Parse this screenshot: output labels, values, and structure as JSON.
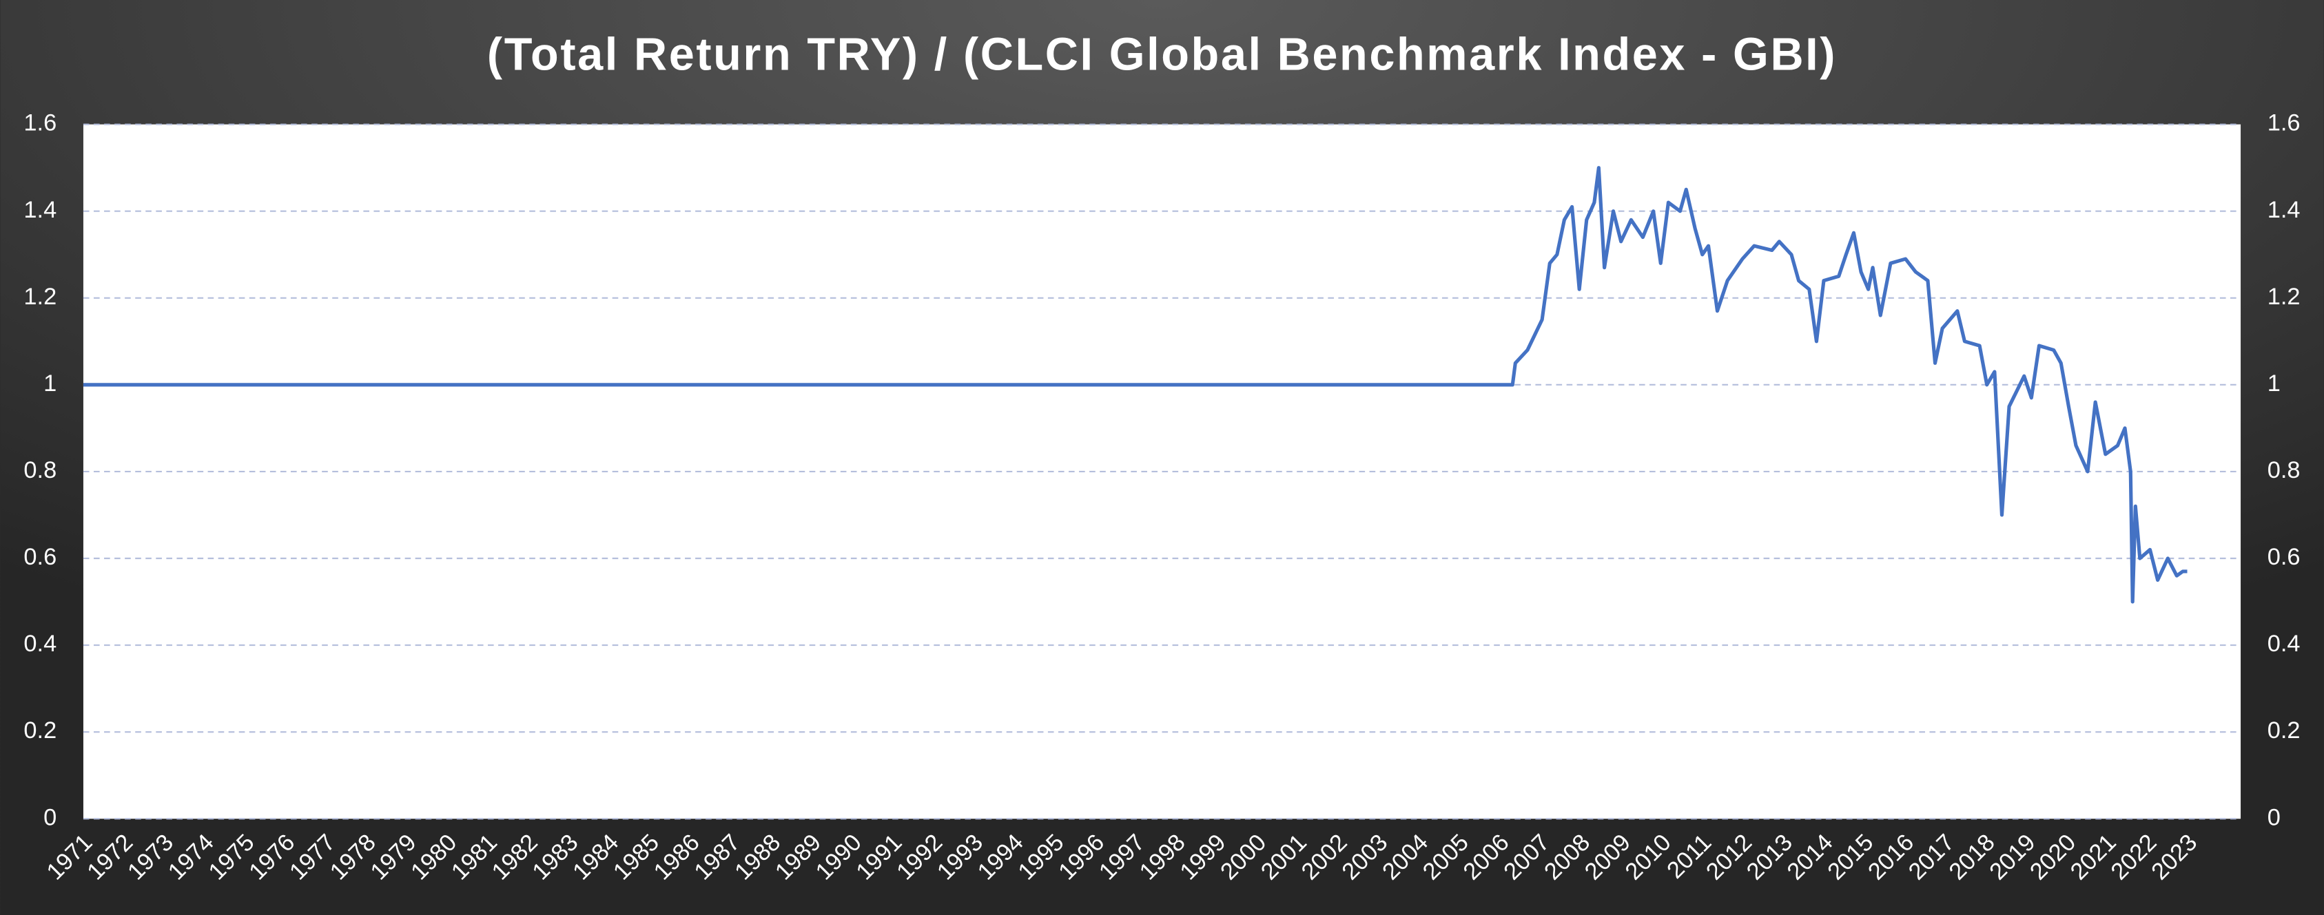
{
  "chart_data": {
    "type": "line",
    "title": "(Total Return TRY) / (CLCI Global Benchmark Index - GBI)",
    "color": "#4472c4",
    "x": [
      1971,
      2006.31,
      2006.38,
      2006.68,
      2007.04,
      2007.23,
      2007.41,
      2007.59,
      2007.78,
      2007.96,
      2008.14,
      2008.33,
      2008.44,
      2008.58,
      2008.8,
      2008.99,
      2009.24,
      2009.53,
      2009.79,
      2009.97,
      2010.16,
      2010.45,
      2010.6,
      2010.82,
      2011.0,
      2011.15,
      2011.37,
      2011.62,
      2011.99,
      2012.28,
      2012.72,
      2012.9,
      2013.2,
      2013.38,
      2013.64,
      2013.82,
      2014.0,
      2014.37,
      2014.55,
      2014.74,
      2014.92,
      2015.1,
      2015.21,
      2015.4,
      2015.65,
      2016.02,
      2016.27,
      2016.57,
      2016.75,
      2016.93,
      2017.3,
      2017.48,
      2017.85,
      2018.03,
      2018.22,
      2018.4,
      2018.58,
      2018.95,
      2019.13,
      2019.32,
      2019.68,
      2019.86,
      2020.05,
      2020.23,
      2020.52,
      2020.71,
      2020.96,
      2021.26,
      2021.44,
      2021.58,
      2021.63,
      2021.7,
      2021.81,
      2022.06,
      2022.25,
      2022.5,
      2022.72,
      2022.87,
      2022.98
    ],
    "values": [
      1.0,
      1.0,
      1.05,
      1.08,
      1.15,
      1.28,
      1.3,
      1.38,
      1.41,
      1.22,
      1.38,
      1.42,
      1.5,
      1.27,
      1.4,
      1.33,
      1.38,
      1.34,
      1.4,
      1.28,
      1.42,
      1.4,
      1.45,
      1.36,
      1.3,
      1.32,
      1.17,
      1.24,
      1.29,
      1.32,
      1.31,
      1.33,
      1.3,
      1.24,
      1.22,
      1.1,
      1.24,
      1.25,
      1.3,
      1.35,
      1.26,
      1.22,
      1.27,
      1.16,
      1.28,
      1.29,
      1.26,
      1.24,
      1.05,
      1.13,
      1.17,
      1.1,
      1.09,
      1.0,
      1.03,
      0.7,
      0.95,
      1.02,
      0.97,
      1.09,
      1.08,
      1.05,
      0.95,
      0.86,
      0.8,
      0.96,
      0.84,
      0.86,
      0.9,
      0.8,
      0.5,
      0.72,
      0.6,
      0.62,
      0.55,
      0.6,
      0.56,
      0.57,
      0.57
    ],
    "xlim": [
      1971,
      2024.3
    ],
    "xticks": [
      1971,
      1972,
      1973,
      1974,
      1975,
      1976,
      1977,
      1978,
      1979,
      1980,
      1981,
      1982,
      1983,
      1984,
      1985,
      1986,
      1987,
      1988,
      1989,
      1990,
      1991,
      1992,
      1993,
      1994,
      1995,
      1996,
      1997,
      1998,
      1999,
      2000,
      2001,
      2002,
      2003,
      2004,
      2005,
      2006,
      2007,
      2008,
      2009,
      2010,
      2011,
      2012,
      2013,
      2014,
      2015,
      2016,
      2017,
      2018,
      2019,
      2020,
      2021,
      2022,
      2023
    ],
    "ylim": [
      0,
      1.6
    ],
    "yticks": [
      0,
      0.2,
      0.4,
      0.6,
      0.8,
      1,
      1.2,
      1.4,
      1.6
    ],
    "y2lim": [
      0,
      1.6
    ],
    "y2ticks": [
      0,
      0.2,
      0.4,
      0.6,
      0.8,
      1,
      1.2,
      1.4,
      1.6
    ],
    "grid": true
  }
}
